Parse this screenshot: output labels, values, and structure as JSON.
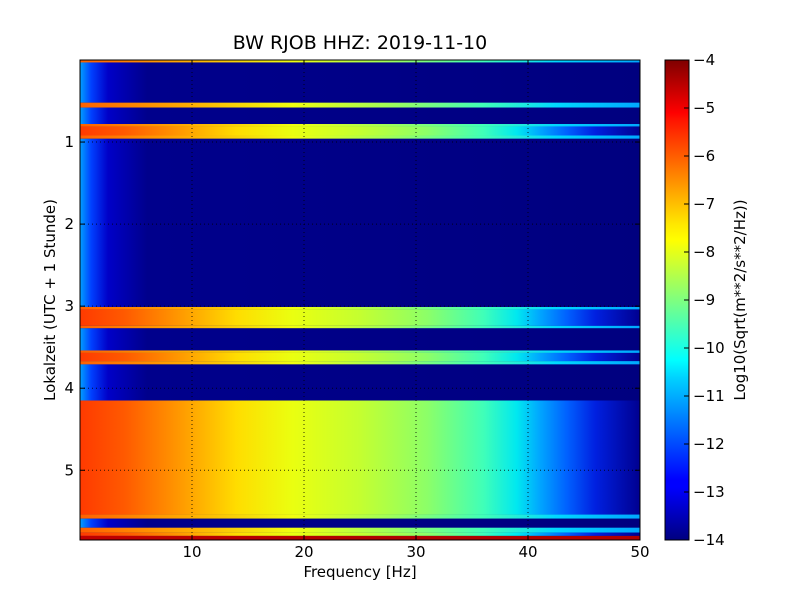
{
  "chart_data": {
    "type": "heatmap",
    "title": "BW RJOB HHZ: 2019-11-10",
    "xlabel": "Frequency [Hz]",
    "ylabel": "Lokalzeit (UTC + 1 Stunde)",
    "xlim": [
      0,
      50
    ],
    "ylim": [
      5.85,
      0
    ],
    "xticks": [
      10,
      20,
      30,
      40,
      50
    ],
    "xtick_labels": [
      "10",
      "20",
      "30",
      "40",
      "50"
    ],
    "yticks": [
      1,
      2,
      3,
      4,
      5
    ],
    "ytick_labels": [
      "1",
      "2",
      "3",
      "4",
      "5"
    ],
    "grid": true,
    "colormap": "jet",
    "colorbar": {
      "label": "Log10(Sqrt(m**2/s**2/Hz))",
      "range": [
        -14,
        -4
      ],
      "ticks": [
        -4,
        -5,
        -6,
        -7,
        -8,
        -9,
        -10,
        -11,
        -12,
        -13,
        -14
      ],
      "tick_labels": [
        "−4",
        "−5",
        "−6",
        "−7",
        "−8",
        "−9",
        "−10",
        "−11",
        "−12",
        "−13",
        "−14"
      ]
    },
    "time_segments": [
      {
        "start": 0.0,
        "end": 0.03,
        "kind": "edge"
      },
      {
        "start": 0.03,
        "end": 0.52,
        "kind": "quiet"
      },
      {
        "start": 0.52,
        "end": 0.58,
        "kind": "edge"
      },
      {
        "start": 0.58,
        "end": 0.78,
        "kind": "quiet"
      },
      {
        "start": 0.78,
        "end": 0.81,
        "kind": "edge"
      },
      {
        "start": 0.81,
        "end": 0.92,
        "kind": "loud"
      },
      {
        "start": 0.92,
        "end": 0.96,
        "kind": "edge"
      },
      {
        "start": 0.96,
        "end": 3.01,
        "kind": "quiet"
      },
      {
        "start": 3.01,
        "end": 3.04,
        "kind": "edge"
      },
      {
        "start": 3.04,
        "end": 3.24,
        "kind": "loud"
      },
      {
        "start": 3.24,
        "end": 3.27,
        "kind": "edge"
      },
      {
        "start": 3.27,
        "end": 3.54,
        "kind": "quiet"
      },
      {
        "start": 3.54,
        "end": 3.57,
        "kind": "edge"
      },
      {
        "start": 3.57,
        "end": 3.67,
        "kind": "loud"
      },
      {
        "start": 3.67,
        "end": 3.71,
        "kind": "edge"
      },
      {
        "start": 3.71,
        "end": 4.15,
        "kind": "quiet"
      },
      {
        "start": 4.15,
        "end": 5.54,
        "kind": "loud"
      },
      {
        "start": 5.54,
        "end": 5.59,
        "kind": "edge"
      },
      {
        "start": 5.59,
        "end": 5.7,
        "kind": "quiet"
      },
      {
        "start": 5.7,
        "end": 5.76,
        "kind": "edge"
      },
      {
        "start": 5.76,
        "end": 5.8,
        "kind": "loud"
      },
      {
        "start": 5.8,
        "end": 5.85,
        "kind": "red"
      }
    ]
  }
}
